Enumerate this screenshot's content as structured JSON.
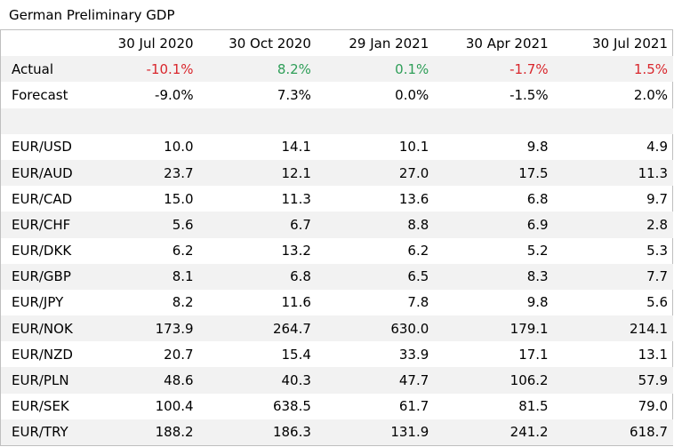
{
  "title": "German Preliminary GDP",
  "columns": [
    "30 Jul 2020",
    "30 Oct 2020",
    "29 Jan 2021",
    "30 Apr 2021",
    "30 Jul 2021"
  ],
  "actual": {
    "label": "Actual",
    "values": [
      "-10.1%",
      "8.2%",
      "0.1%",
      "-1.7%",
      "1.5%"
    ]
  },
  "forecast": {
    "label": "Forecast",
    "values": [
      "-9.0%",
      "7.3%",
      "0.0%",
      "-1.5%",
      "2.0%"
    ]
  },
  "pairs": [
    {
      "label": "EUR/USD",
      "values": [
        "10.0",
        "14.1",
        "10.1",
        "9.8",
        "4.9"
      ]
    },
    {
      "label": "EUR/AUD",
      "values": [
        "23.7",
        "12.1",
        "27.0",
        "17.5",
        "11.3"
      ]
    },
    {
      "label": "EUR/CAD",
      "values": [
        "15.0",
        "11.3",
        "13.6",
        "6.8",
        "9.7"
      ]
    },
    {
      "label": "EUR/CHF",
      "values": [
        "5.6",
        "6.7",
        "8.8",
        "6.9",
        "2.8"
      ]
    },
    {
      "label": "EUR/DKK",
      "values": [
        "6.2",
        "13.2",
        "6.2",
        "5.2",
        "5.3"
      ]
    },
    {
      "label": "EUR/GBP",
      "values": [
        "8.1",
        "6.8",
        "6.5",
        "8.3",
        "7.7"
      ]
    },
    {
      "label": "EUR/JPY",
      "values": [
        "8.2",
        "11.6",
        "7.8",
        "9.8",
        "5.6"
      ]
    },
    {
      "label": "EUR/NOK",
      "values": [
        "173.9",
        "264.7",
        "630.0",
        "179.1",
        "214.1"
      ]
    },
    {
      "label": "EUR/NZD",
      "values": [
        "20.7",
        "15.4",
        "33.9",
        "17.1",
        "13.1"
      ]
    },
    {
      "label": "EUR/PLN",
      "values": [
        "48.6",
        "40.3",
        "47.7",
        "106.2",
        "57.9"
      ]
    },
    {
      "label": "EUR/SEK",
      "values": [
        "100.4",
        "638.5",
        "61.7",
        "81.5",
        "79.0"
      ]
    },
    {
      "label": "EUR/TRY",
      "values": [
        "188.2",
        "186.3",
        "131.9",
        "241.2",
        "618.7"
      ]
    }
  ],
  "colors": {
    "negative": "#d9262c",
    "positive": "#2e9e58",
    "shade": "#f2f2f2",
    "border": "#bfbfbf"
  }
}
